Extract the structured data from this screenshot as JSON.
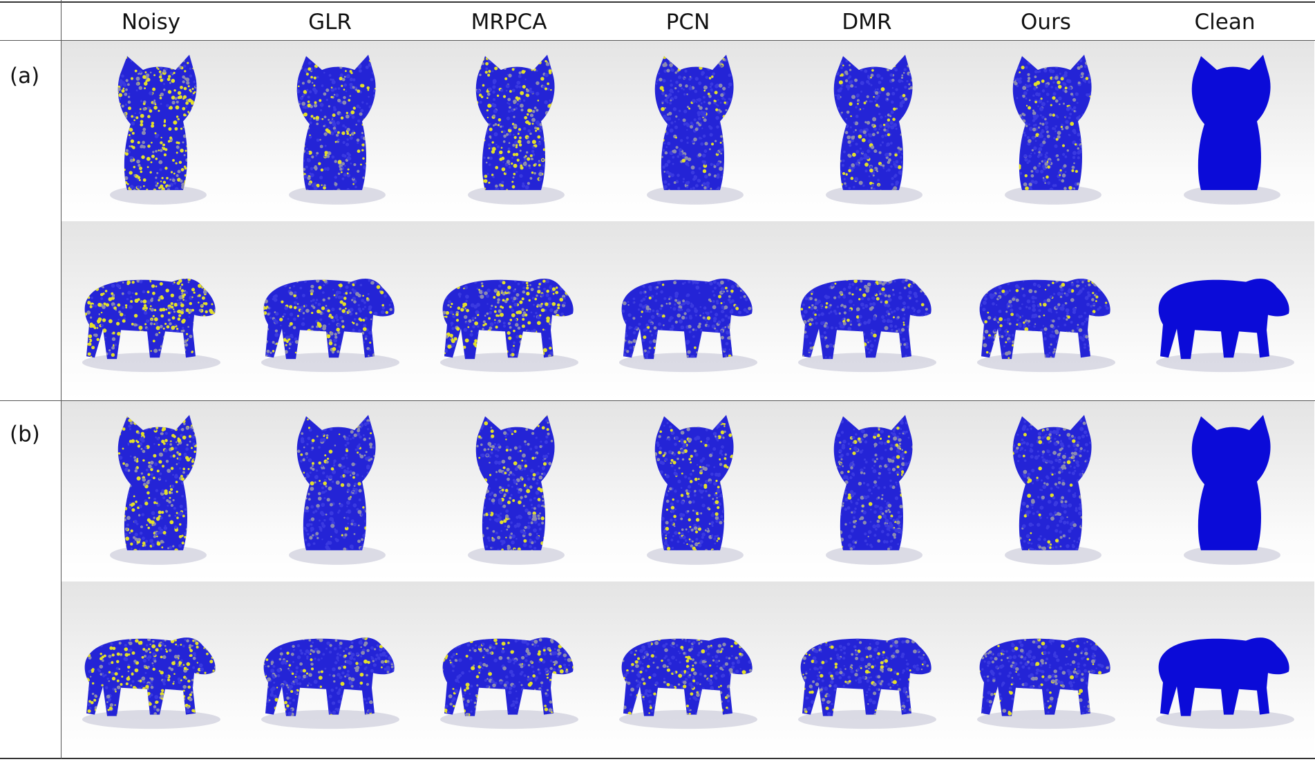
{
  "columns": [
    "Noisy",
    "GLR",
    "MRPCA",
    "PCN",
    "DMR",
    "Ours",
    "Clean"
  ],
  "groups": [
    {
      "label": "(a)",
      "rows": [
        "cat",
        "cow"
      ]
    },
    {
      "label": "(b)",
      "rows": [
        "cat",
        "cow"
      ]
    }
  ],
  "colors": {
    "accurate_point": "#2424d6",
    "mid_error_point": "#8c8cb0",
    "outlier_point": "#e3e02a",
    "clean_surface": "#0b0bd8"
  },
  "noise_level": {
    "a": {
      "Noisy": 0.55,
      "GLR": 0.28,
      "MRPCA": 0.36,
      "PCN": 0.08,
      "DMR": 0.14,
      "Ours": 0.12,
      "Clean": 0
    },
    "b": {
      "Noisy": 0.45,
      "GLR": 0.12,
      "MRPCA": 0.2,
      "PCN": 0.2,
      "DMR": 0.14,
      "Ours": 0.13,
      "Clean": 0
    }
  }
}
